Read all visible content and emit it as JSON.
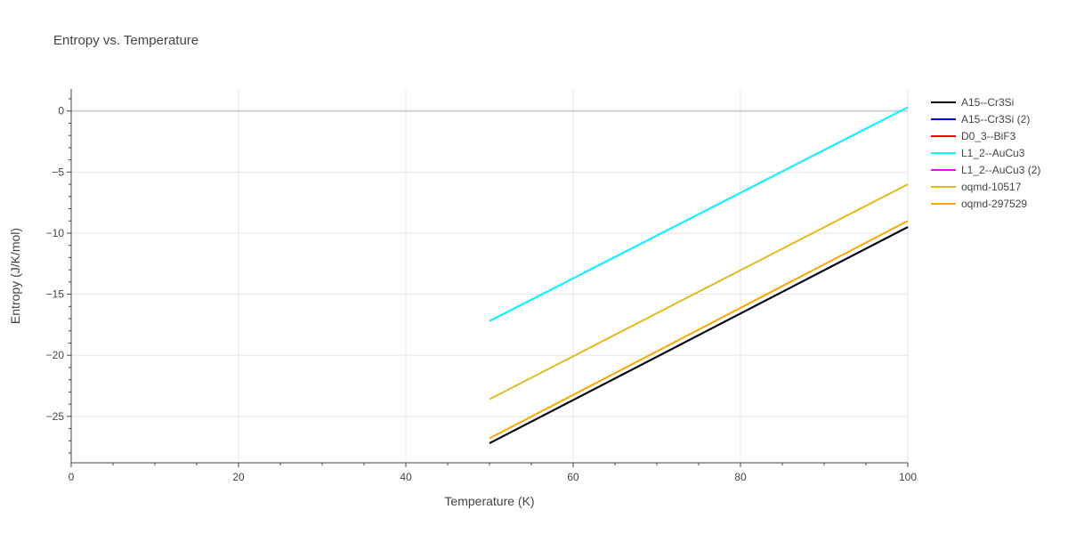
{
  "chart_data": {
    "type": "line",
    "title": "Entropy vs. Temperature",
    "xlabel": "Temperature (K)",
    "ylabel": "Entropy (J/K/mol)",
    "xlim": [
      0,
      100
    ],
    "ylim": [
      -28.8,
      1.8
    ],
    "x_ticks": [
      0,
      20,
      40,
      60,
      80,
      100
    ],
    "y_ticks": [
      0,
      -5,
      -10,
      -15,
      -20,
      -25
    ],
    "y_tick_labels": [
      "0",
      "−5",
      "−10",
      "−15",
      "−20",
      "−25"
    ],
    "grid": true,
    "legend_position": "right",
    "series": [
      {
        "name": "A15--Cr3Si",
        "color": "#000000",
        "x": [
          50,
          100
        ],
        "y": [
          -27.2,
          -9.5
        ]
      },
      {
        "name": "A15--Cr3Si (2)",
        "color": "#0000ff",
        "x": [
          50,
          100
        ],
        "y": [
          -27.2,
          -9.5
        ]
      },
      {
        "name": "D0_3--BiF3",
        "color": "#ff0000",
        "x": [],
        "y": []
      },
      {
        "name": "L1_2--AuCu3",
        "color": "#00ffff",
        "x": [
          50,
          100
        ],
        "y": [
          -17.2,
          0.3
        ]
      },
      {
        "name": "L1_2--AuCu3 (2)",
        "color": "#ff00ff",
        "x": [
          50,
          100
        ],
        "y": [
          -17.2,
          0.3
        ]
      },
      {
        "name": "oqmd-10517",
        "color": "#e6b91e",
        "x": [
          50,
          100
        ],
        "y": [
          -23.6,
          -6.0
        ]
      },
      {
        "name": "oqmd-297529",
        "color": "#ffa500",
        "x": [
          50,
          100
        ],
        "y": [
          -26.8,
          -9.0
        ]
      }
    ],
    "draw_order": [
      1,
      4,
      2,
      0,
      6,
      5,
      3
    ]
  }
}
